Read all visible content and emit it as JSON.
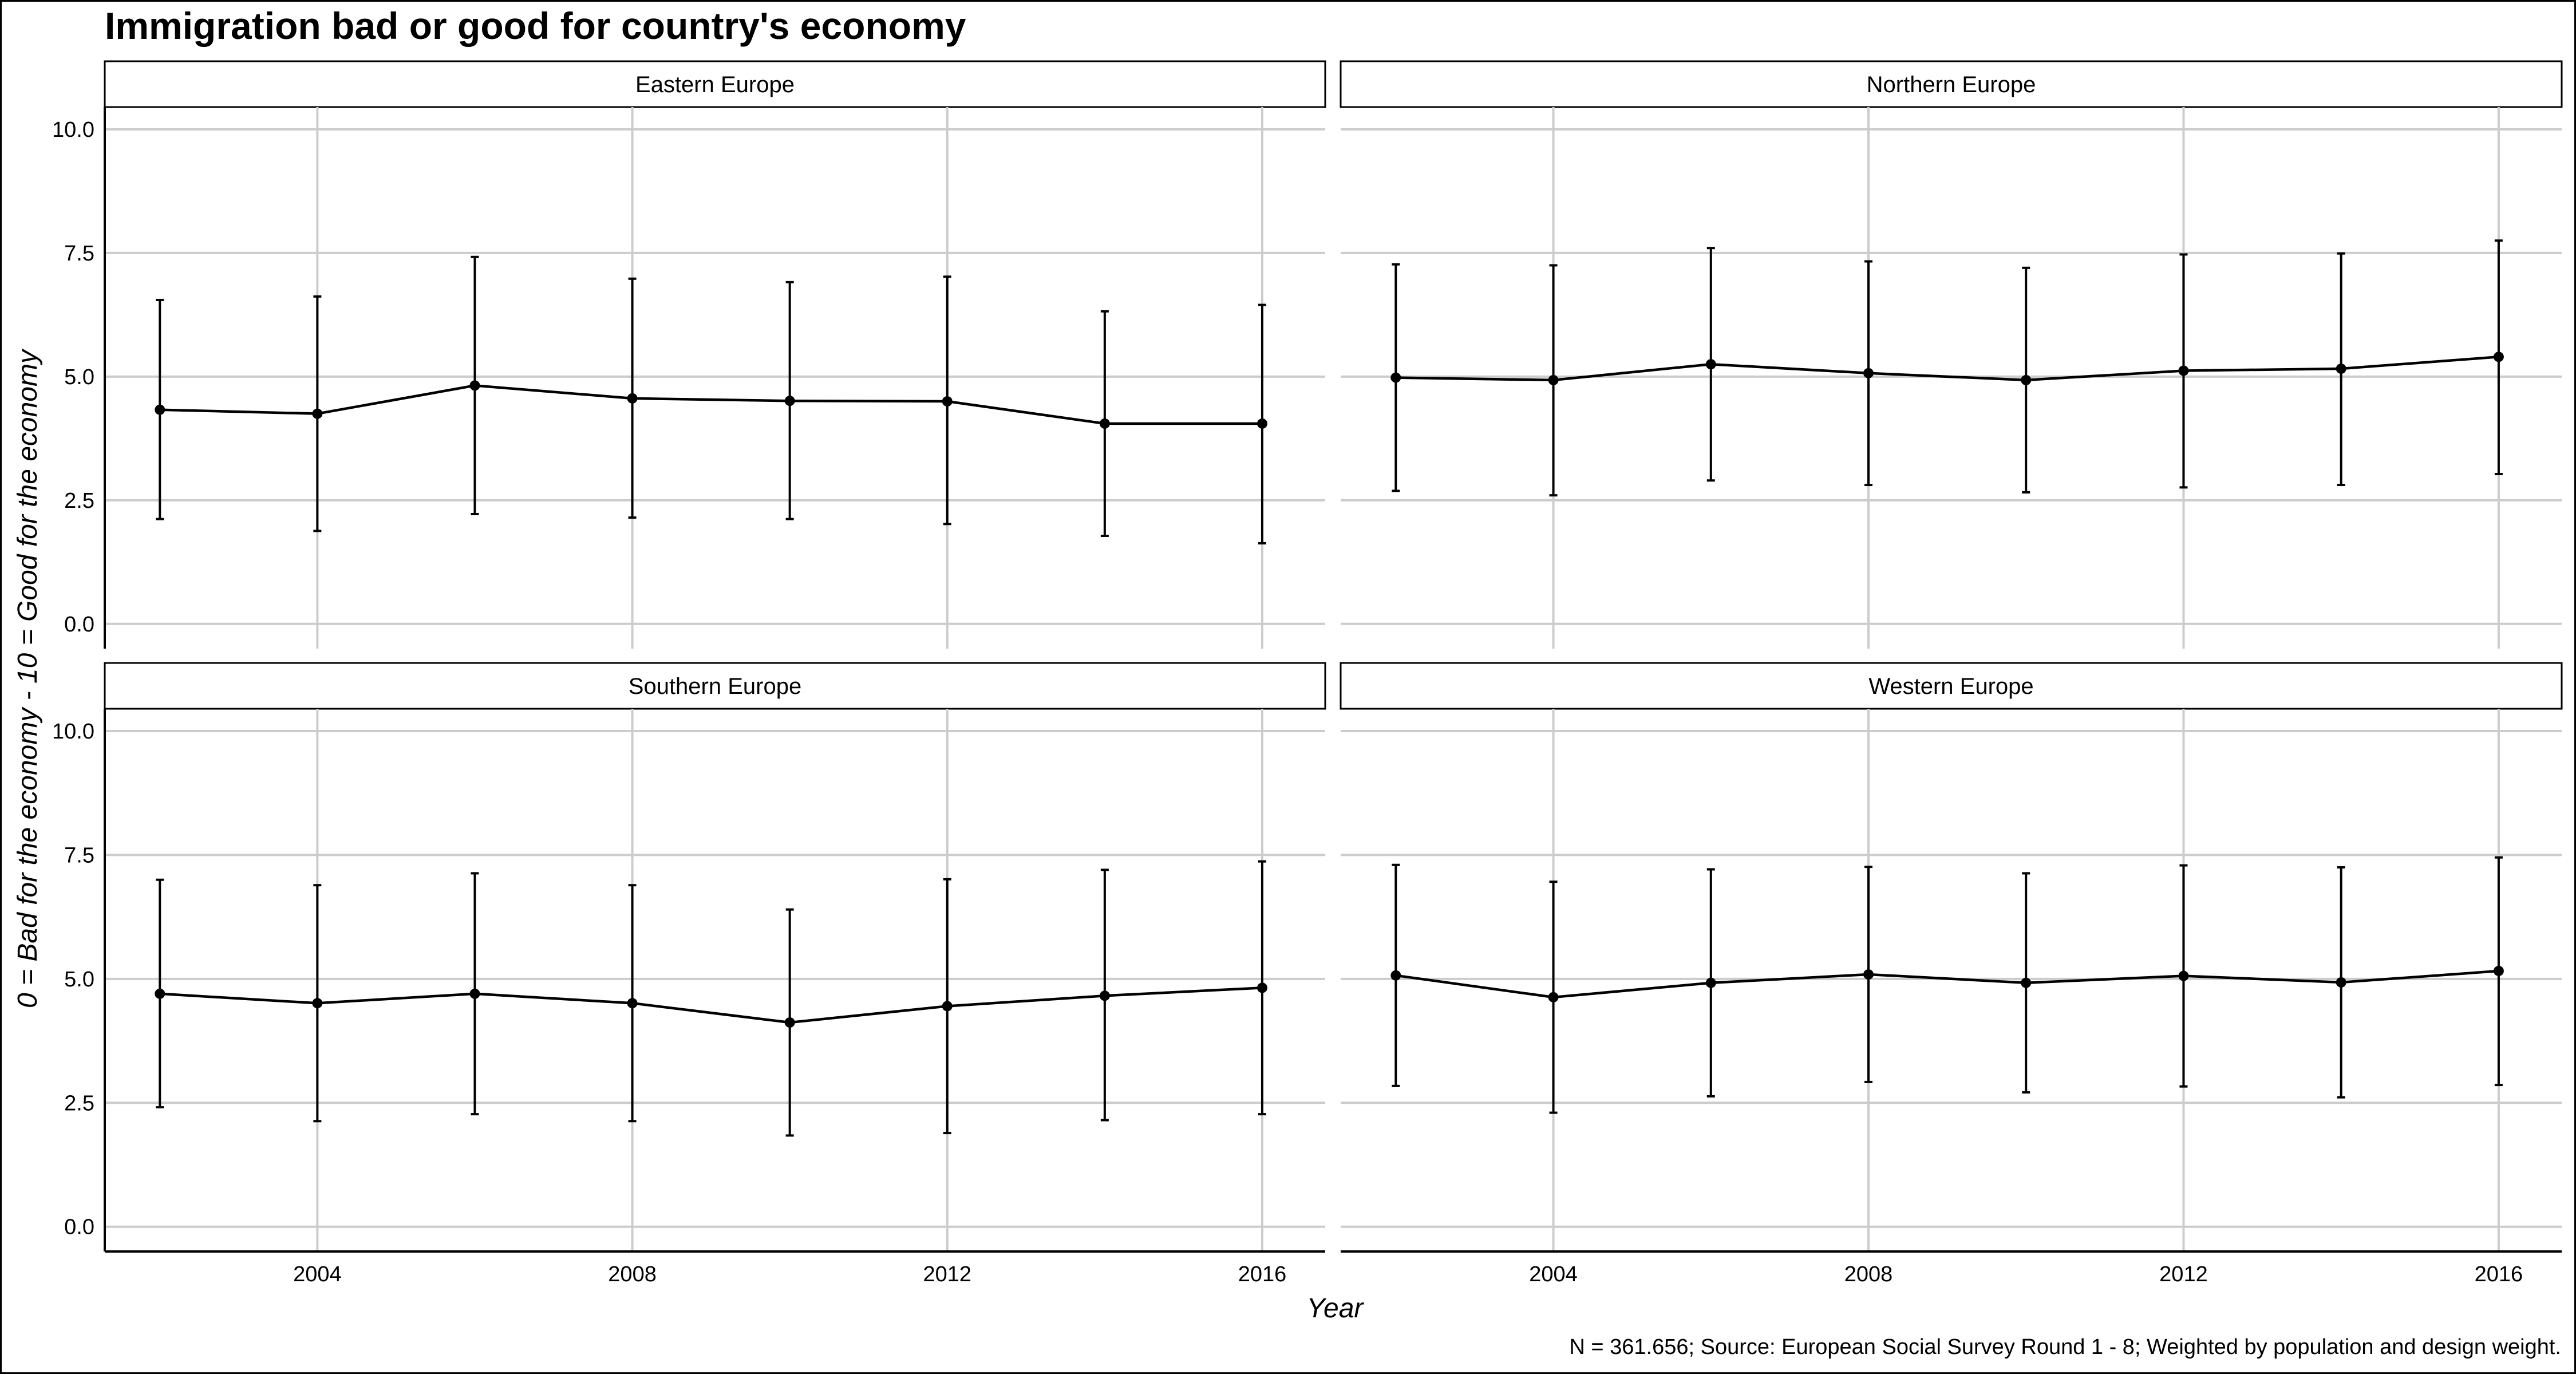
{
  "title": "Immigration bad or good for country's economy",
  "ylabel": "0 = Bad for the economy - 10 = Good for the economy",
  "xlabel": "Year",
  "caption": "N = 361.656; Source: European Social Survey Round 1 - 8; Weighted by population and design weight.",
  "chart_data": {
    "type": "line",
    "facets": [
      "Eastern Europe",
      "Northern Europe",
      "Southern Europe",
      "Western Europe"
    ],
    "x": [
      2002,
      2004,
      2006,
      2008,
      2010,
      2012,
      2014,
      2016
    ],
    "x_ticks": [
      2004,
      2008,
      2012,
      2016
    ],
    "y_ticks": [
      "0.0",
      "2.5",
      "5.0",
      "7.5",
      "10.0"
    ],
    "ylim": [
      0,
      10
    ],
    "xlim": [
      2001.3,
      2016.8
    ],
    "grid": true,
    "error_bars": true,
    "series": [
      {
        "facet": "Eastern Europe",
        "mean": [
          4.33,
          4.25,
          4.82,
          4.56,
          4.51,
          4.5,
          4.05,
          4.05
        ],
        "lower": [
          2.12,
          1.88,
          2.22,
          2.15,
          2.12,
          2.02,
          1.78,
          1.63
        ],
        "upper": [
          6.55,
          6.62,
          7.42,
          6.98,
          6.91,
          7.02,
          6.32,
          6.45
        ]
      },
      {
        "facet": "Northern Europe",
        "mean": [
          4.98,
          4.93,
          5.25,
          5.07,
          4.93,
          5.12,
          5.16,
          5.4
        ],
        "lower": [
          2.69,
          2.6,
          2.9,
          2.81,
          2.66,
          2.76,
          2.81,
          3.03
        ],
        "upper": [
          7.27,
          7.25,
          7.6,
          7.33,
          7.2,
          7.47,
          7.49,
          7.75
        ]
      },
      {
        "facet": "Southern Europe",
        "mean": [
          4.7,
          4.51,
          4.7,
          4.51,
          4.12,
          4.45,
          4.66,
          4.82
        ],
        "lower": [
          2.41,
          2.13,
          2.27,
          2.13,
          1.84,
          1.89,
          2.15,
          2.27
        ],
        "upper": [
          7.0,
          6.89,
          7.13,
          6.89,
          6.4,
          7.01,
          7.2,
          7.37
        ]
      },
      {
        "facet": "Western Europe",
        "mean": [
          5.07,
          4.63,
          4.92,
          5.09,
          4.92,
          5.06,
          4.93,
          5.16
        ],
        "lower": [
          2.84,
          2.3,
          2.63,
          2.92,
          2.71,
          2.83,
          2.61,
          2.86
        ],
        "upper": [
          7.3,
          6.96,
          7.21,
          7.26,
          7.13,
          7.29,
          7.25,
          7.45
        ]
      }
    ]
  }
}
